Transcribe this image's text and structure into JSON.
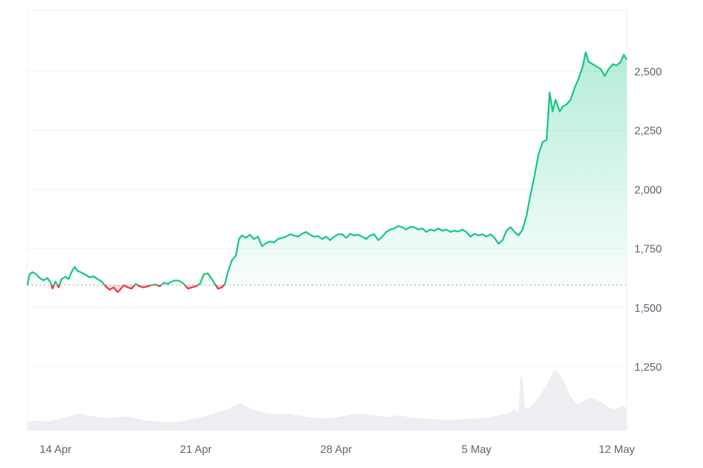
{
  "chart_data": {
    "type": "area",
    "baseline_value": 1595,
    "ylim": [
      1250,
      2750
    ],
    "y_ticks": [
      {
        "value": 1250,
        "label": "1,250"
      },
      {
        "value": 1500,
        "label": "1,500"
      },
      {
        "value": 1750,
        "label": "1,750"
      },
      {
        "value": 2000,
        "label": "2,000"
      },
      {
        "value": 2250,
        "label": "2,250"
      },
      {
        "value": 2500,
        "label": "2,500"
      }
    ],
    "x_ticks": [
      {
        "day": 1.4,
        "label": "14 Apr"
      },
      {
        "day": 8.4,
        "label": "21 Apr"
      },
      {
        "day": 15.4,
        "label": "28 Apr"
      },
      {
        "day": 22.4,
        "label": "5 May"
      },
      {
        "day": 29.4,
        "label": "12 May"
      }
    ],
    "x_range_days": [
      0,
      29.9
    ],
    "colors": {
      "up": "#16c784",
      "down": "#ea3943",
      "volume": "#eceef2",
      "grid": "#eef0f3",
      "baseline": "#9aa0a8"
    },
    "series": [
      {
        "points": [
          [
            0.0,
            1595
          ],
          [
            0.1,
            1640
          ],
          [
            0.25,
            1650
          ],
          [
            0.45,
            1640
          ],
          [
            0.6,
            1625
          ],
          [
            0.8,
            1615
          ],
          [
            1.0,
            1625
          ],
          [
            1.15,
            1605
          ],
          [
            1.25,
            1580
          ],
          [
            1.4,
            1610
          ],
          [
            1.55,
            1585
          ],
          [
            1.7,
            1620
          ],
          [
            1.9,
            1630
          ],
          [
            2.05,
            1620
          ],
          [
            2.2,
            1650
          ],
          [
            2.35,
            1672
          ],
          [
            2.5,
            1655
          ],
          [
            2.7,
            1648
          ],
          [
            2.9,
            1638
          ],
          [
            3.1,
            1628
          ],
          [
            3.3,
            1632
          ],
          [
            3.5,
            1620
          ],
          [
            3.7,
            1610
          ],
          [
            3.9,
            1590
          ],
          [
            4.1,
            1575
          ],
          [
            4.3,
            1585
          ],
          [
            4.5,
            1565
          ],
          [
            4.65,
            1578
          ],
          [
            4.8,
            1595
          ],
          [
            5.0,
            1585
          ],
          [
            5.2,
            1580
          ],
          [
            5.4,
            1600
          ],
          [
            5.6,
            1590
          ],
          [
            5.8,
            1585
          ],
          [
            6.0,
            1590
          ],
          [
            6.2,
            1595
          ],
          [
            6.4,
            1598
          ],
          [
            6.6,
            1590
          ],
          [
            6.8,
            1605
          ],
          [
            7.0,
            1600
          ],
          [
            7.2,
            1610
          ],
          [
            7.4,
            1615
          ],
          [
            7.6,
            1612
          ],
          [
            7.8,
            1600
          ],
          [
            8.0,
            1580
          ],
          [
            8.2,
            1585
          ],
          [
            8.4,
            1590
          ],
          [
            8.6,
            1600
          ],
          [
            8.8,
            1640
          ],
          [
            9.0,
            1645
          ],
          [
            9.2,
            1620
          ],
          [
            9.35,
            1600
          ],
          [
            9.5,
            1580
          ],
          [
            9.7,
            1585
          ],
          [
            9.85,
            1600
          ],
          [
            10.0,
            1650
          ],
          [
            10.2,
            1700
          ],
          [
            10.4,
            1720
          ],
          [
            10.55,
            1790
          ],
          [
            10.7,
            1805
          ],
          [
            10.9,
            1795
          ],
          [
            11.1,
            1808
          ],
          [
            11.3,
            1790
          ],
          [
            11.5,
            1800
          ],
          [
            11.7,
            1760
          ],
          [
            11.9,
            1772
          ],
          [
            12.1,
            1780
          ],
          [
            12.3,
            1775
          ],
          [
            12.5,
            1790
          ],
          [
            12.7,
            1795
          ],
          [
            12.9,
            1800
          ],
          [
            13.1,
            1810
          ],
          [
            13.3,
            1805
          ],
          [
            13.5,
            1800
          ],
          [
            13.7,
            1812
          ],
          [
            13.9,
            1820
          ],
          [
            14.1,
            1808
          ],
          [
            14.3,
            1800
          ],
          [
            14.5,
            1802
          ],
          [
            14.7,
            1790
          ],
          [
            14.9,
            1800
          ],
          [
            15.1,
            1785
          ],
          [
            15.3,
            1800
          ],
          [
            15.5,
            1810
          ],
          [
            15.7,
            1810
          ],
          [
            15.9,
            1795
          ],
          [
            16.1,
            1812
          ],
          [
            16.3,
            1805
          ],
          [
            16.5,
            1808
          ],
          [
            16.7,
            1800
          ],
          [
            16.9,
            1790
          ],
          [
            17.1,
            1805
          ],
          [
            17.3,
            1810
          ],
          [
            17.5,
            1785
          ],
          [
            17.7,
            1800
          ],
          [
            17.9,
            1820
          ],
          [
            18.1,
            1830
          ],
          [
            18.3,
            1835
          ],
          [
            18.5,
            1845
          ],
          [
            18.7,
            1840
          ],
          [
            18.9,
            1830
          ],
          [
            19.1,
            1842
          ],
          [
            19.3,
            1840
          ],
          [
            19.5,
            1830
          ],
          [
            19.7,
            1835
          ],
          [
            19.9,
            1820
          ],
          [
            20.1,
            1830
          ],
          [
            20.3,
            1825
          ],
          [
            20.5,
            1835
          ],
          [
            20.7,
            1825
          ],
          [
            20.9,
            1830
          ],
          [
            21.1,
            1820
          ],
          [
            21.3,
            1825
          ],
          [
            21.5,
            1822
          ],
          [
            21.7,
            1830
          ],
          [
            21.9,
            1820
          ],
          [
            22.1,
            1800
          ],
          [
            22.3,
            1812
          ],
          [
            22.5,
            1805
          ],
          [
            22.7,
            1810
          ],
          [
            22.9,
            1800
          ],
          [
            23.1,
            1810
          ],
          [
            23.3,
            1795
          ],
          [
            23.5,
            1770
          ],
          [
            23.7,
            1785
          ],
          [
            23.9,
            1825
          ],
          [
            24.1,
            1840
          ],
          [
            24.3,
            1820
          ],
          [
            24.5,
            1805
          ],
          [
            24.7,
            1830
          ],
          [
            24.9,
            1890
          ],
          [
            25.1,
            1980
          ],
          [
            25.3,
            2060
          ],
          [
            25.5,
            2150
          ],
          [
            25.7,
            2200
          ],
          [
            25.9,
            2210
          ],
          [
            26.05,
            2410
          ],
          [
            26.2,
            2330
          ],
          [
            26.35,
            2380
          ],
          [
            26.55,
            2330
          ],
          [
            26.7,
            2350
          ],
          [
            26.9,
            2360
          ],
          [
            27.1,
            2380
          ],
          [
            27.3,
            2430
          ],
          [
            27.5,
            2470
          ],
          [
            27.7,
            2520
          ],
          [
            27.85,
            2580
          ],
          [
            28.0,
            2540
          ],
          [
            28.2,
            2530
          ],
          [
            28.4,
            2520
          ],
          [
            28.6,
            2510
          ],
          [
            28.8,
            2480
          ],
          [
            29.0,
            2510
          ],
          [
            29.2,
            2530
          ],
          [
            29.4,
            2525
          ],
          [
            29.6,
            2540
          ],
          [
            29.75,
            2570
          ],
          [
            29.9,
            2550
          ]
        ]
      }
    ],
    "volume": [
      [
        0.0,
        0.14
      ],
      [
        0.5,
        0.16
      ],
      [
        1.0,
        0.15
      ],
      [
        1.5,
        0.18
      ],
      [
        2.0,
        0.22
      ],
      [
        2.5,
        0.28
      ],
      [
        3.0,
        0.25
      ],
      [
        3.5,
        0.22
      ],
      [
        4.0,
        0.2
      ],
      [
        4.5,
        0.22
      ],
      [
        5.0,
        0.23
      ],
      [
        5.5,
        0.19
      ],
      [
        6.0,
        0.16
      ],
      [
        6.5,
        0.15
      ],
      [
        7.0,
        0.13
      ],
      [
        7.5,
        0.14
      ],
      [
        8.0,
        0.17
      ],
      [
        8.5,
        0.2
      ],
      [
        9.0,
        0.25
      ],
      [
        9.5,
        0.3
      ],
      [
        10.0,
        0.35
      ],
      [
        10.3,
        0.4
      ],
      [
        10.6,
        0.45
      ],
      [
        11.0,
        0.38
      ],
      [
        11.5,
        0.32
      ],
      [
        12.0,
        0.28
      ],
      [
        12.5,
        0.26
      ],
      [
        13.0,
        0.28
      ],
      [
        13.5,
        0.25
      ],
      [
        14.0,
        0.22
      ],
      [
        14.5,
        0.2
      ],
      [
        15.0,
        0.2
      ],
      [
        15.5,
        0.22
      ],
      [
        16.0,
        0.25
      ],
      [
        16.5,
        0.28
      ],
      [
        17.0,
        0.26
      ],
      [
        17.5,
        0.24
      ],
      [
        18.0,
        0.22
      ],
      [
        18.5,
        0.25
      ],
      [
        19.0,
        0.22
      ],
      [
        19.5,
        0.2
      ],
      [
        20.0,
        0.19
      ],
      [
        20.5,
        0.18
      ],
      [
        21.0,
        0.17
      ],
      [
        21.5,
        0.18
      ],
      [
        22.0,
        0.19
      ],
      [
        22.5,
        0.2
      ],
      [
        23.0,
        0.21
      ],
      [
        23.5,
        0.25
      ],
      [
        24.0,
        0.28
      ],
      [
        24.3,
        0.35
      ],
      [
        24.5,
        0.3
      ],
      [
        24.6,
        0.95
      ],
      [
        24.7,
        0.85
      ],
      [
        24.8,
        0.4
      ],
      [
        25.0,
        0.35
      ],
      [
        25.3,
        0.45
      ],
      [
        25.6,
        0.6
      ],
      [
        25.9,
        0.75
      ],
      [
        26.1,
        0.9
      ],
      [
        26.3,
        1.0
      ],
      [
        26.5,
        0.95
      ],
      [
        26.7,
        0.85
      ],
      [
        26.9,
        0.7
      ],
      [
        27.1,
        0.55
      ],
      [
        27.3,
        0.48
      ],
      [
        27.5,
        0.42
      ],
      [
        27.8,
        0.5
      ],
      [
        28.1,
        0.55
      ],
      [
        28.4,
        0.5
      ],
      [
        28.7,
        0.45
      ],
      [
        29.0,
        0.38
      ],
      [
        29.3,
        0.35
      ],
      [
        29.6,
        0.4
      ],
      [
        29.9,
        0.38
      ]
    ]
  }
}
